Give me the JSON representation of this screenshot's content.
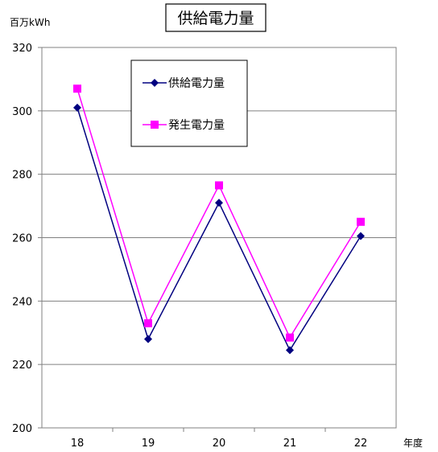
{
  "chart_data": {
    "type": "line",
    "title": "供給電力量",
    "ylabel": "百万kWh",
    "xlabel": "年度",
    "categories": [
      "18",
      "19",
      "20",
      "21",
      "22"
    ],
    "ylim": [
      200,
      320
    ],
    "yticks": [
      200,
      220,
      240,
      260,
      280,
      300,
      320
    ],
    "grid": true,
    "legend_position": "top-center",
    "series": [
      {
        "name": "供給電力量",
        "values": [
          301,
          228,
          271,
          224.5,
          260.5
        ],
        "color": "#000080",
        "marker": "diamond"
      },
      {
        "name": "発生電力量",
        "values": [
          307,
          233,
          276.5,
          228.5,
          265
        ],
        "color": "#ff00ff",
        "marker": "square"
      }
    ]
  }
}
